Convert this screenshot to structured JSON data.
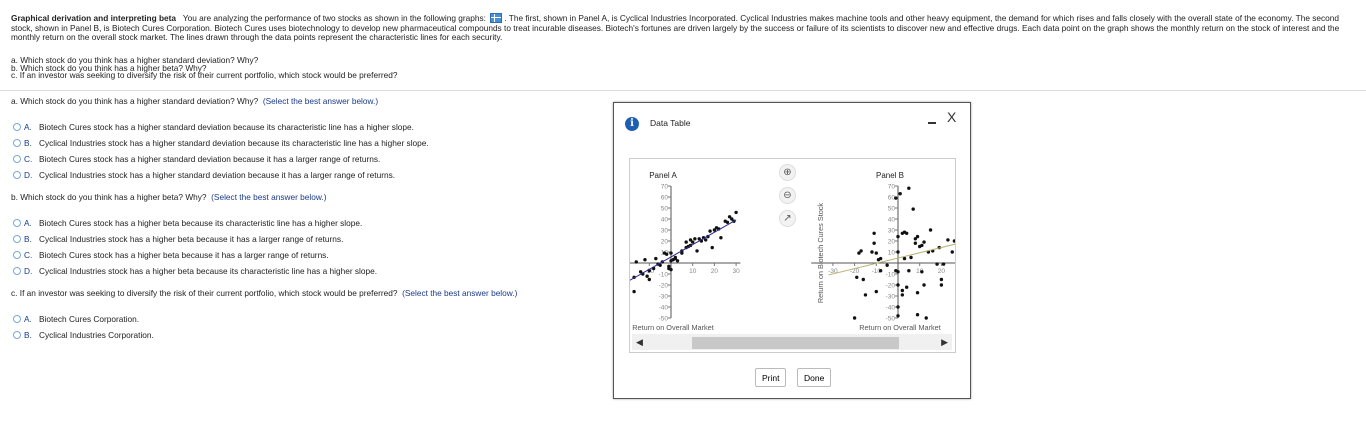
{
  "intro": {
    "title": "Graphical derivation and interpreting beta",
    "text1": "You are analyzing the performance of two stocks as shown in the following graphs:",
    "text2": ". The first, shown in Panel A, is Cyclical Industries Incorporated.  Cyclical Industries makes machine tools and other heavy equipment, the demand for which rises and falls closely with the overall state of the economy.  The second stock, shown in Panel B, is Biotech Cures Corporation.  Biotech Cures uses biotechnology to develop new pharmaceutical compounds to treat incurable diseases.  Biotech's fortunes are driven largely by the success or failure of its scientists to discover new and effective drugs.  Each data point on the graph shows the monthly return on the stock of interest and the monthly return on the overall stock market.  The lines drawn through the data points represent the characteristic lines for each security.",
    "items": [
      "a.  Which stock do you think has a higher standard deviation?  Why?",
      "b.  Which stock do you think has a higher beta?  Why?",
      "c.  If an investor was seeking to diversify the risk of their current portfolio, which stock would be preferred?"
    ]
  },
  "questions": [
    {
      "text": "a.  Which stock do you think has a higher standard deviation?  Why?",
      "hint": "(Select the best answer below.)",
      "options": [
        {
          "letter": "A.",
          "text": "Biotech Cures stock has a higher standard deviation because its characteristic line has a higher slope."
        },
        {
          "letter": "B.",
          "text": "Cyclical Industries stock has a higher standard deviation because its characteristic line has a higher slope."
        },
        {
          "letter": "C.",
          "text": "Biotech Cures stock has a higher standard deviation because it has a larger range of returns."
        },
        {
          "letter": "D.",
          "text": "Cyclical Industries stock has a higher standard deviation because it has a larger range of returns."
        }
      ]
    },
    {
      "text": "b.  Which stock do you think has a higher beta?  Why?",
      "hint": "(Select the best answer below.)",
      "options": [
        {
          "letter": "A.",
          "text": "Biotech Cures stock has a higher beta because its characteristic line has a higher slope."
        },
        {
          "letter": "B.",
          "text": "Cyclical Industries stock has a higher beta because it has a larger range of returns."
        },
        {
          "letter": "C.",
          "text": "Biotech Cures stock has a higher beta because it has a larger range of returns."
        },
        {
          "letter": "D.",
          "text": "Cyclical Industries stock has a higher beta because its characteristic line has a higher slope."
        }
      ]
    },
    {
      "text": "c.  If an investor was seeking to diversify the risk of their current portfolio, which stock would be preferred?",
      "hint": "(Select the best answer below.)",
      "options": [
        {
          "letter": "A.",
          "text": "Biotech Cures Corporation."
        },
        {
          "letter": "B.",
          "text": "Cyclical Industries Corporation."
        }
      ]
    }
  ],
  "dialog": {
    "title": "Data Table",
    "info_icon": "i",
    "close": "X",
    "print": "Print",
    "done": "Done"
  },
  "chart_data": [
    {
      "type": "scatter",
      "title": "Panel A",
      "xlabel": "Return on Overall Market",
      "ylabel": "",
      "ylim": [
        -50,
        70
      ],
      "yticks": [
        -50,
        -40,
        -30,
        -20,
        -10,
        10,
        20,
        30,
        40,
        50,
        60,
        70
      ],
      "xticks": [
        -10,
        10,
        20,
        30
      ],
      "line_color": "#2a2a8a",
      "line": {
        "slope": 1.12,
        "intercept": 5.5
      },
      "points": [
        [
          -17,
          -13
        ],
        [
          -16,
          1
        ],
        [
          -14,
          -8
        ],
        [
          -13,
          -10
        ],
        [
          -12,
          3
        ],
        [
          -11,
          -12
        ],
        [
          -10,
          -7
        ],
        [
          -10,
          -15
        ],
        [
          -8,
          -5
        ],
        [
          -7,
          4
        ],
        [
          -6,
          -1
        ],
        [
          -5,
          -2
        ],
        [
          -4,
          1
        ],
        [
          -3,
          9
        ],
        [
          -2,
          8
        ],
        [
          -1,
          -5
        ],
        [
          -1,
          -3
        ],
        [
          0,
          -6
        ],
        [
          0,
          2
        ],
        [
          0,
          9
        ],
        [
          1,
          3
        ],
        [
          2,
          5
        ],
        [
          2,
          4
        ],
        [
          3,
          2
        ],
        [
          5,
          9
        ],
        [
          5,
          11
        ],
        [
          7,
          14
        ],
        [
          7,
          19
        ],
        [
          8,
          15
        ],
        [
          9,
          16
        ],
        [
          9,
          21
        ],
        [
          10,
          19
        ],
        [
          11,
          22
        ],
        [
          12,
          11
        ],
        [
          13,
          22
        ],
        [
          14,
          20
        ],
        [
          15,
          23
        ],
        [
          16,
          21
        ],
        [
          17,
          24
        ],
        [
          18,
          29
        ],
        [
          19,
          14
        ],
        [
          20,
          30
        ],
        [
          21,
          32
        ],
        [
          22,
          31
        ],
        [
          23,
          23
        ],
        [
          25,
          38
        ],
        [
          26,
          37
        ],
        [
          27,
          42
        ],
        [
          28,
          40
        ],
        [
          29,
          38
        ],
        [
          30,
          46
        ],
        [
          -17,
          -26
        ]
      ]
    },
    {
      "type": "scatter",
      "title": "Panel B",
      "xlabel": "Return on Overall Market",
      "ylabel": "Return on Biotech Cures Stock",
      "ylim": [
        -50,
        70
      ],
      "yticks": [
        -50,
        -40,
        -30,
        -20,
        -10,
        10,
        20,
        30,
        40,
        50,
        60,
        70
      ],
      "xticks": [
        -30,
        -20,
        -10,
        10,
        20
      ],
      "line_color": "#b8b070",
      "line": {
        "slope": 0.48,
        "intercept": 4.5
      },
      "points": [
        [
          -20,
          -50
        ],
        [
          -18,
          9
        ],
        [
          -17,
          11
        ],
        [
          -19,
          -13
        ],
        [
          -16,
          -15
        ],
        [
          -15,
          -29
        ],
        [
          -12,
          10
        ],
        [
          -11,
          18
        ],
        [
          -11,
          27
        ],
        [
          -10,
          9
        ],
        [
          -10,
          -26
        ],
        [
          -9,
          3
        ],
        [
          -8,
          4
        ],
        [
          -8,
          -7
        ],
        [
          -5,
          -2
        ],
        [
          -1,
          59
        ],
        [
          0,
          10
        ],
        [
          0,
          24
        ],
        [
          1,
          63
        ],
        [
          0,
          -8
        ],
        [
          0,
          -20
        ],
        [
          0,
          -40
        ],
        [
          0,
          -48
        ],
        [
          2,
          27
        ],
        [
          2,
          -25
        ],
        [
          2,
          -29
        ],
        [
          3,
          28
        ],
        [
          3,
          4
        ],
        [
          4,
          27
        ],
        [
          4,
          -22
        ],
        [
          5,
          68
        ],
        [
          5,
          -7
        ],
        [
          7,
          49
        ],
        [
          6,
          5
        ],
        [
          8,
          18
        ],
        [
          8,
          22
        ],
        [
          9,
          24
        ],
        [
          9,
          -27
        ],
        [
          9,
          -47
        ],
        [
          10,
          15
        ],
        [
          11,
          16
        ],
        [
          11,
          -8
        ],
        [
          12,
          19
        ],
        [
          12,
          -20
        ],
        [
          13,
          -50
        ],
        [
          14,
          10
        ],
        [
          15,
          30
        ],
        [
          16,
          11
        ],
        [
          18,
          -1
        ],
        [
          19,
          14
        ],
        [
          20,
          -20
        ],
        [
          20,
          -15
        ],
        [
          21,
          -1
        ],
        [
          23,
          21
        ],
        [
          25,
          10
        ],
        [
          26,
          20
        ],
        [
          -1,
          -7
        ]
      ]
    }
  ]
}
